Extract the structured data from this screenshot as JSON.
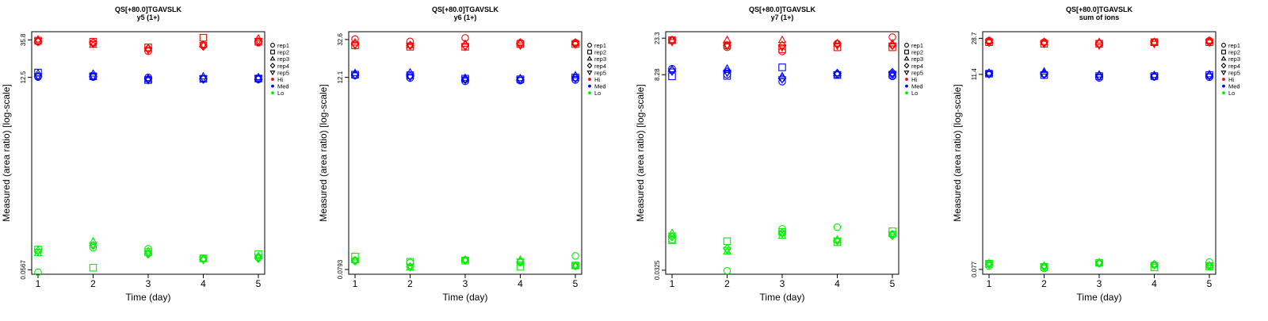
{
  "chart_data": [
    {
      "type": "scatter",
      "title": "QS[+80.0]TGAVSLK",
      "subtitle": "y5 (1+)",
      "xlabel": "Time (day)",
      "ylabel": "Measured (area ratio) [log-scale]",
      "x_ticks": [
        "1",
        "2",
        "3",
        "4",
        "5"
      ],
      "y_log": true,
      "ylim": [
        0.05,
        45
      ],
      "y_ticks": [
        {
          "value": 0.0567,
          "label": "0.0567"
        },
        {
          "value": 12.5,
          "label": "12.5"
        },
        {
          "value": 35.8,
          "label": "35.8"
        }
      ],
      "legend": {
        "position": "right",
        "entries": [
          {
            "label": "rep1",
            "shape": "circle"
          },
          {
            "label": "rep2",
            "shape": "square"
          },
          {
            "label": "rep3",
            "shape": "triangle-up"
          },
          {
            "label": "rep4",
            "shape": "diamond"
          },
          {
            "label": "rep5",
            "shape": "triangle-down"
          },
          {
            "label": "Hi",
            "color": "#ff0000"
          },
          {
            "label": "Med",
            "color": "#0000ff"
          },
          {
            "label": "Lo",
            "color": "#00ee00"
          }
        ]
      },
      "series": [
        {
          "group": "Hi",
          "color": "#ff0000",
          "values": {
            "rep1": [
              34,
              33,
              26,
              31,
              33
            ],
            "rep2": [
              35,
              34,
              29,
              38,
              34
            ],
            "rep3": [
              36,
              31,
              28,
              31,
              37
            ],
            "rep4": [
              34,
              33,
              28,
              30,
              34
            ],
            "rep5": [
              35,
              32,
              27,
              31,
              35
            ]
          }
        },
        {
          "group": "Med",
          "color": "#0000ff",
          "values": {
            "rep1": [
              12.6,
              12.6,
              12.5,
              12.1,
              11.8
            ],
            "rep2": [
              14.3,
              12.9,
              11.6,
              12.0,
              12.1
            ],
            "rep3": [
              13.9,
              13.8,
              11.8,
              12.8,
              12.5
            ],
            "rep4": [
              12.8,
              12.8,
              12.0,
              11.9,
              11.9
            ],
            "rep5": [
              13.0,
              12.9,
              11.6,
              12.2,
              12.2
            ]
          }
        },
        {
          "group": "Lo",
          "color": "#00ee00",
          "values": {
            "rep1": [
              0.053,
              0.105,
              0.102,
              0.078,
              0.08
            ],
            "rep2": [
              0.1,
              0.06,
              0.093,
              0.078,
              0.088
            ],
            "rep3": [
              0.09,
              0.125,
              0.095,
              0.077,
              0.083
            ],
            "rep4": [
              0.096,
              0.112,
              0.088,
              0.076,
              0.078
            ],
            "rep5": [
              0.094,
              0.114,
              0.09,
              0.075,
              0.08
            ]
          }
        }
      ]
    },
    {
      "type": "scatter",
      "title": "QS[+80.0]TGAVSLK",
      "subtitle": "y6 (1+)",
      "xlabel": "Time (day)",
      "ylabel": "Measured (area ratio) [log-scale]",
      "x_ticks": [
        "1",
        "2",
        "3",
        "4",
        "5"
      ],
      "y_log": true,
      "ylim": [
        0.07,
        40
      ],
      "y_ticks": [
        {
          "value": 0.0793,
          "label": "0.0793"
        },
        {
          "value": 12.1,
          "label": "12.1"
        },
        {
          "value": 32.6,
          "label": "32.6"
        }
      ],
      "legend": {
        "position": "right",
        "entries": [
          {
            "label": "rep1",
            "shape": "circle"
          },
          {
            "label": "rep2",
            "shape": "square"
          },
          {
            "label": "rep3",
            "shape": "triangle-up"
          },
          {
            "label": "rep4",
            "shape": "diamond"
          },
          {
            "label": "rep5",
            "shape": "triangle-down"
          },
          {
            "label": "Hi",
            "color": "#ff0000"
          },
          {
            "label": "Med",
            "color": "#0000ff"
          },
          {
            "label": "Lo",
            "color": "#00ee00"
          }
        ]
      },
      "series": [
        {
          "group": "Hi",
          "color": "#ff0000",
          "values": {
            "rep1": [
              33,
              31,
              34,
              30,
              30
            ],
            "rep2": [
              28,
              27,
              27,
              29,
              29
            ],
            "rep3": [
              30,
              28,
              29,
              30,
              30
            ],
            "rep4": [
              29,
              28,
              28,
              29,
              29
            ],
            "rep5": [
              28,
              28,
              27,
              28,
              29
            ]
          }
        },
        {
          "group": "Med",
          "color": "#0000ff",
          "values": {
            "rep1": [
              12.7,
              11.9,
              10.9,
              11.1,
              11.3
            ],
            "rep2": [
              13.0,
              12.8,
              11.7,
              11.5,
              12.1
            ],
            "rep3": [
              13.5,
              13.7,
              11.9,
              11.8,
              12.7
            ],
            "rep4": [
              13.0,
              12.5,
              11.4,
              11.5,
              11.9
            ],
            "rep5": [
              12.8,
              12.3,
              11.5,
              11.4,
              11.7
            ]
          }
        },
        {
          "group": "Lo",
          "color": "#00ee00",
          "values": {
            "rep1": [
              0.1,
              0.095,
              0.102,
              0.095,
              0.113
            ],
            "rep2": [
              0.111,
              0.097,
              0.1,
              0.085,
              0.088
            ],
            "rep3": [
              0.101,
              0.083,
              0.102,
              0.102,
              0.087
            ],
            "rep4": [
              0.099,
              0.085,
              0.101,
              0.097,
              0.087
            ],
            "rep5": [
              0.1,
              0.086,
              0.101,
              0.098,
              0.088
            ]
          }
        }
      ]
    },
    {
      "type": "scatter",
      "title": "QS[+80.0]TGAVSLK",
      "subtitle": "y7 (1+)",
      "xlabel": "Time (day)",
      "ylabel": "Measured (area ratio) [log-scale]",
      "x_ticks": [
        "1",
        "2",
        "3",
        "4",
        "5"
      ],
      "y_log": true,
      "ylim": [
        0.029,
        28
      ],
      "y_ticks": [
        {
          "value": 0.0325,
          "label": "0.0325"
        },
        {
          "value": 8.28,
          "label": "8.28"
        },
        {
          "value": 23.3,
          "label": "23.3"
        }
      ],
      "legend": {
        "position": "right",
        "entries": [
          {
            "label": "rep1",
            "shape": "circle"
          },
          {
            "label": "rep2",
            "shape": "square"
          },
          {
            "label": "rep3",
            "shape": "triangle-up"
          },
          {
            "label": "rep4",
            "shape": "diamond"
          },
          {
            "label": "rep5",
            "shape": "triangle-down"
          },
          {
            "label": "Hi",
            "color": "#ff0000"
          },
          {
            "label": "Med",
            "color": "#0000ff"
          },
          {
            "label": "Lo",
            "color": "#00ee00"
          }
        ]
      },
      "series": [
        {
          "group": "Hi",
          "color": "#ff0000",
          "values": {
            "rep1": [
              22,
              18,
              16,
              20,
              24
            ],
            "rep2": [
              22,
              19,
              17,
              18,
              18
            ],
            "rep3": [
              22,
              22,
              22,
              20,
              20
            ],
            "rep4": [
              22,
              19,
              19,
              20,
              19
            ],
            "rep5": [
              21,
              19,
              18,
              19,
              19
            ]
          }
        },
        {
          "group": "Med",
          "color": "#0000ff",
          "values": {
            "rep1": [
              9.8,
              8.3,
              6.8,
              8.3,
              7.9
            ],
            "rep2": [
              7.9,
              8.0,
              10.2,
              8.2,
              8.3
            ],
            "rep3": [
              9.6,
              9.8,
              7.9,
              8.6,
              8.5
            ],
            "rep4": [
              9.3,
              9.0,
              7.4,
              8.6,
              8.8
            ],
            "rep5": [
              9.1,
              8.8,
              7.3,
              8.4,
              8.3
            ]
          }
        },
        {
          "group": "Lo",
          "color": "#00ee00",
          "values": {
            "rep1": [
              0.077,
              0.032,
              0.105,
              0.11,
              0.09
            ],
            "rep2": [
              0.076,
              0.074,
              0.096,
              0.072,
              0.098
            ],
            "rep3": [
              0.093,
              0.055,
              0.086,
              0.077,
              0.09
            ],
            "rep4": [
              0.084,
              0.06,
              0.093,
              0.075,
              0.087
            ],
            "rep5": [
              0.087,
              0.058,
              0.092,
              0.076,
              0.09
            ]
          }
        }
      ]
    },
    {
      "type": "scatter",
      "title": "QS[+80.0]TGAVSLK",
      "subtitle": "sum of ions",
      "xlabel": "Time (day)",
      "ylabel": "Measured (area ratio) [log-scale]",
      "x_ticks": [
        "1",
        "2",
        "3",
        "4",
        "5"
      ],
      "y_log": true,
      "ylim": [
        0.068,
        34
      ],
      "y_ticks": [
        {
          "value": 0.077,
          "label": "0.077"
        },
        {
          "value": 11.4,
          "label": "11.4"
        },
        {
          "value": 28.7,
          "label": "28.7"
        }
      ],
      "legend": {
        "position": "right",
        "entries": [
          {
            "label": "rep1",
            "shape": "circle"
          },
          {
            "label": "rep2",
            "shape": "square"
          },
          {
            "label": "rep3",
            "shape": "triangle-up"
          },
          {
            "label": "rep4",
            "shape": "diamond"
          },
          {
            "label": "rep5",
            "shape": "triangle-down"
          },
          {
            "label": "Hi",
            "color": "#ff0000"
          },
          {
            "label": "Med",
            "color": "#0000ff"
          },
          {
            "label": "Lo",
            "color": "#00ee00"
          }
        ]
      },
      "series": [
        {
          "group": "Hi",
          "color": "#ff0000",
          "values": {
            "rep1": [
              27,
              26,
              25,
              26,
              27
            ],
            "rep2": [
              26,
              25,
              25,
              26,
              26
            ],
            "rep3": [
              27,
              26,
              26,
              26,
              27
            ],
            "rep4": [
              26,
              26,
              25,
              26,
              26
            ],
            "rep5": [
              26,
              25,
              24,
              25,
              26
            ]
          }
        },
        {
          "group": "Med",
          "color": "#0000ff",
          "values": {
            "rep1": [
              11.6,
              11.5,
              10.4,
              10.7,
              10.6
            ],
            "rep2": [
              11.6,
              11.2,
              10.9,
              10.9,
              11.2
            ],
            "rep3": [
              11.8,
              12.2,
              11.3,
              11.2,
              11.4
            ],
            "rep4": [
              11.7,
              11.6,
              10.9,
              10.9,
              11.0
            ],
            "rep5": [
              11.5,
              11.3,
              10.8,
              10.8,
              10.9
            ]
          }
        },
        {
          "group": "Lo",
          "color": "#00ee00",
          "values": {
            "rep1": [
              0.084,
              0.079,
              0.09,
              0.087,
              0.093
            ],
            "rep2": [
              0.089,
              0.082,
              0.091,
              0.081,
              0.083
            ],
            "rep3": [
              0.09,
              0.084,
              0.092,
              0.087,
              0.085
            ],
            "rep4": [
              0.088,
              0.083,
              0.091,
              0.087,
              0.084
            ],
            "rep5": [
              0.089,
              0.083,
              0.09,
              0.086,
              0.086
            ]
          }
        }
      ]
    }
  ]
}
